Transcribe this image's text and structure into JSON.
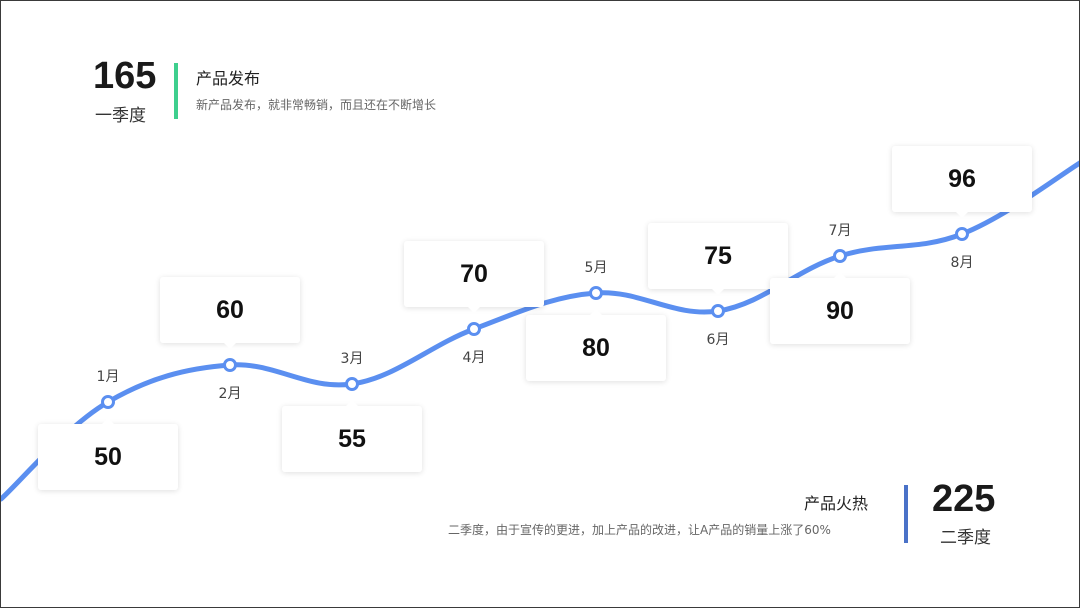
{
  "q1": {
    "total": "165",
    "label": "一季度",
    "title": "产品发布",
    "desc": "新产品发布，就非常畅销，而且还在不断增长",
    "bar_color": "#3ecf8e"
  },
  "q2": {
    "total": "225",
    "label": "二季度",
    "title": "产品火热",
    "desc": "二季度，由于宣传的更进，加上产品的改进，让A产品的销量上涨了60%",
    "bar_color": "#4a72c8"
  },
  "chart_data": {
    "type": "line",
    "categories": [
      "1月",
      "2月",
      "3月",
      "4月",
      "5月",
      "6月",
      "7月",
      "8月"
    ],
    "values": [
      50,
      60,
      55,
      70,
      80,
      75,
      90,
      96
    ],
    "line_color": "#5b8ff0",
    "grid": false,
    "legend": "none"
  }
}
